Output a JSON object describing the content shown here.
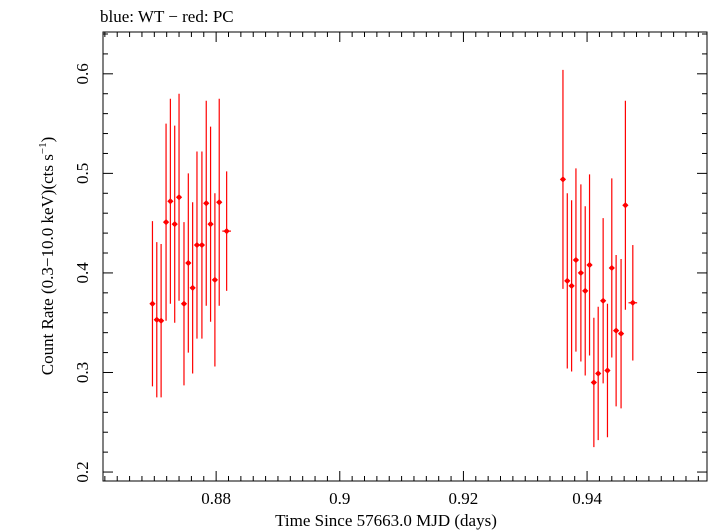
{
  "chart_data": {
    "type": "scatter",
    "title": "blue: WT − red: PC",
    "xlabel": "Time Since 57663.0 MJD (days)",
    "ylabel_main": "Count Rate (0.3−10.0 keV)(cts s",
    "ylabel_sup": "−1",
    "ylabel_close": ")",
    "xlim": [
      0.8617,
      0.9594
    ],
    "ylim": [
      0.191,
      0.642
    ],
    "x_ticks": [
      0.88,
      0.9,
      0.92,
      0.94
    ],
    "x_tick_labels": [
      "0.88",
      "0.9",
      "0.92",
      "0.94"
    ],
    "y_ticks": [
      0.2,
      0.3,
      0.4,
      0.5,
      0.6
    ],
    "y_tick_labels": [
      "0.2",
      "0.3",
      "0.4",
      "0.5",
      "0.6"
    ],
    "grid": false,
    "series": [
      {
        "color": "#ff0000",
        "points": [
          {
            "x": 0.8697,
            "y": 0.369,
            "yerr": 0.083,
            "xerr": 0.0004
          },
          {
            "x": 0.8704,
            "y": 0.353,
            "yerr": 0.078,
            "xerr": 0.0004
          },
          {
            "x": 0.8711,
            "y": 0.352,
            "yerr": 0.077,
            "xerr": 0.0004
          },
          {
            "x": 0.8719,
            "y": 0.451,
            "yerr": 0.099,
            "xerr": 0.0004
          },
          {
            "x": 0.8726,
            "y": 0.472,
            "yerr": 0.103,
            "xerr": 0.0004
          },
          {
            "x": 0.8733,
            "y": 0.449,
            "yerr": 0.099,
            "xerr": 0.0004
          },
          {
            "x": 0.874,
            "y": 0.476,
            "yerr": 0.104,
            "xerr": 0.0004
          },
          {
            "x": 0.8748,
            "y": 0.369,
            "yerr": 0.082,
            "xerr": 0.0004
          },
          {
            "x": 0.8755,
            "y": 0.41,
            "yerr": 0.09,
            "xerr": 0.0004
          },
          {
            "x": 0.8762,
            "y": 0.385,
            "yerr": 0.086,
            "xerr": 0.0004
          },
          {
            "x": 0.8769,
            "y": 0.428,
            "yerr": 0.094,
            "xerr": 0.0004
          },
          {
            "x": 0.8777,
            "y": 0.428,
            "yerr": 0.094,
            "xerr": 0.0004
          },
          {
            "x": 0.8784,
            "y": 0.47,
            "yerr": 0.103,
            "xerr": 0.0004
          },
          {
            "x": 0.8791,
            "y": 0.449,
            "yerr": 0.098,
            "xerr": 0.0004
          },
          {
            "x": 0.8798,
            "y": 0.393,
            "yerr": 0.087,
            "xerr": 0.0004
          },
          {
            "x": 0.8805,
            "y": 0.471,
            "yerr": 0.104,
            "xerr": 0.0004
          },
          {
            "x": 0.8817,
            "y": 0.442,
            "yerr": 0.06,
            "xerr": 0.0007
          },
          {
            "x": 0.9361,
            "y": 0.494,
            "yerr": 0.11,
            "xerr": 0.0004
          },
          {
            "x": 0.9368,
            "y": 0.392,
            "yerr": 0.088,
            "xerr": 0.0004
          },
          {
            "x": 0.9375,
            "y": 0.387,
            "yerr": 0.086,
            "xerr": 0.0004
          },
          {
            "x": 0.9382,
            "y": 0.413,
            "yerr": 0.092,
            "xerr": 0.0004
          },
          {
            "x": 0.939,
            "y": 0.4,
            "yerr": 0.089,
            "xerr": 0.0004
          },
          {
            "x": 0.9397,
            "y": 0.382,
            "yerr": 0.085,
            "xerr": 0.0004
          },
          {
            "x": 0.9404,
            "y": 0.408,
            "yerr": 0.091,
            "xerr": 0.0004
          },
          {
            "x": 0.9411,
            "y": 0.29,
            "yerr": 0.065,
            "xerr": 0.0004
          },
          {
            "x": 0.9418,
            "y": 0.299,
            "yerr": 0.067,
            "xerr": 0.0004
          },
          {
            "x": 0.9426,
            "y": 0.372,
            "yerr": 0.083,
            "xerr": 0.0004
          },
          {
            "x": 0.9433,
            "y": 0.302,
            "yerr": 0.067,
            "xerr": 0.0004
          },
          {
            "x": 0.944,
            "y": 0.405,
            "yerr": 0.09,
            "xerr": 0.0004
          },
          {
            "x": 0.9447,
            "y": 0.342,
            "yerr": 0.076,
            "xerr": 0.0004
          },
          {
            "x": 0.9455,
            "y": 0.339,
            "yerr": 0.075,
            "xerr": 0.0004
          },
          {
            "x": 0.9462,
            "y": 0.468,
            "yerr": 0.105,
            "xerr": 0.0004
          },
          {
            "x": 0.9474,
            "y": 0.37,
            "yerr": 0.058,
            "xerr": 0.0007
          }
        ]
      }
    ]
  }
}
